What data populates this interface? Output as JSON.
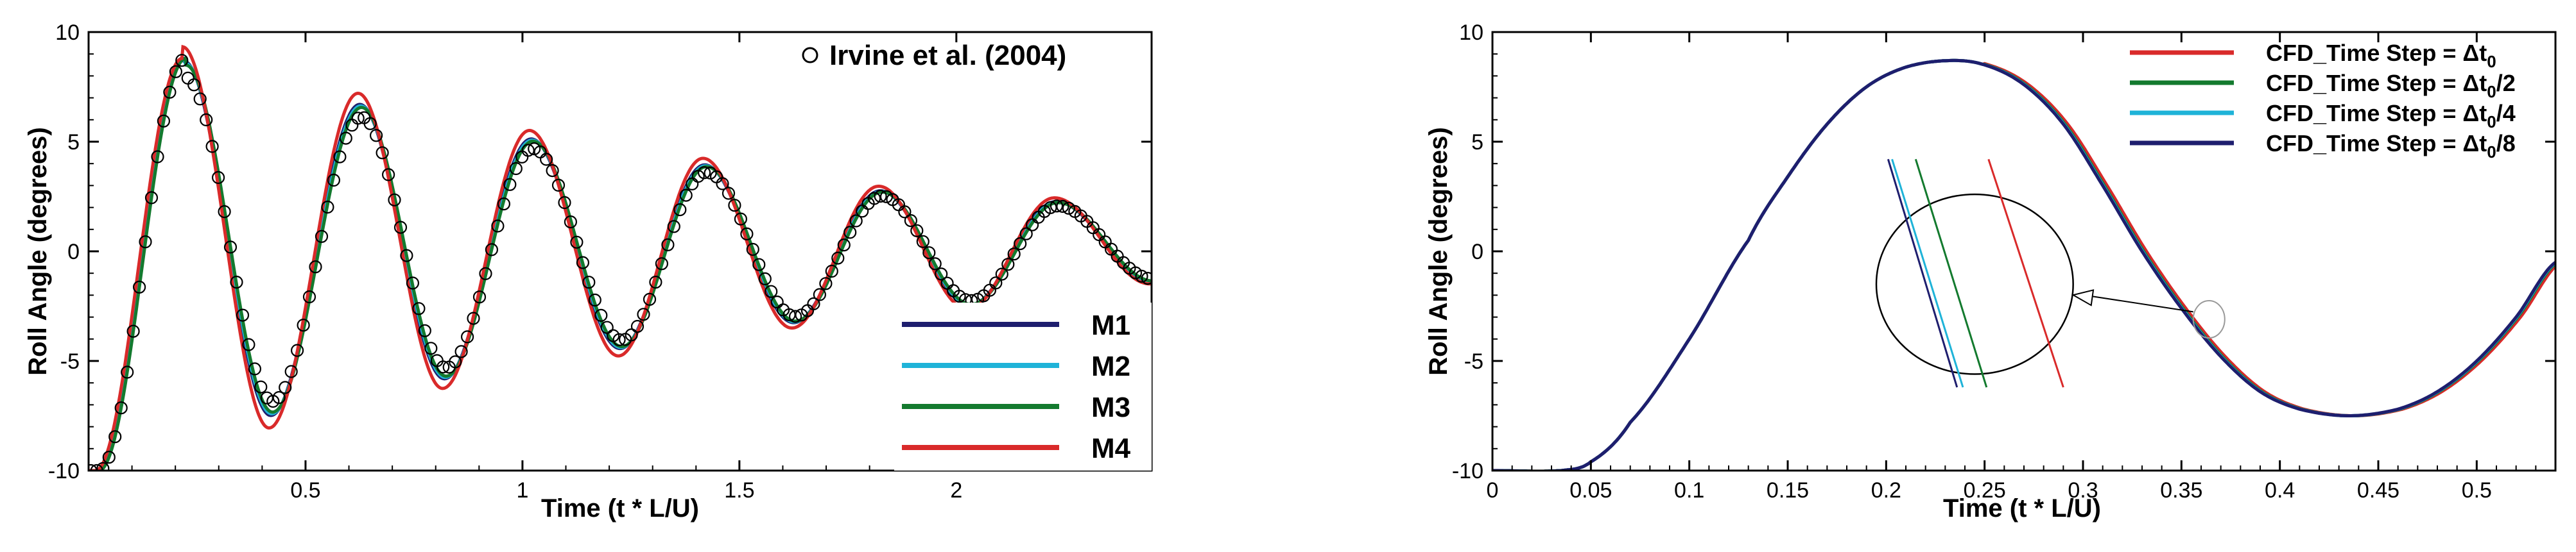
{
  "chart_data": [
    {
      "type": "line",
      "ylabel": "Roll Angle (degrees)",
      "xlabel": "Time (t * L/U)",
      "xlim": [
        0.0,
        2.45
      ],
      "ylim": [
        -10,
        10
      ],
      "xticks": [
        "0.5",
        "1",
        "1.5",
        "2"
      ],
      "xtick_values": [
        0.5,
        1.0,
        1.5,
        2.0
      ],
      "yticks": [
        "-10",
        "-5",
        "0",
        "5",
        "10"
      ],
      "ytick_values": [
        -10,
        -5,
        0,
        5,
        10
      ],
      "grid": false,
      "legend_position": "top-right (markers) and bottom-right (lines)",
      "model": {
        "description": "damped oscillation",
        "initial_angle": -10,
        "start_time": 0.02,
        "period": 0.4,
        "peaks": [
          {
            "t": 0.22,
            "y": 8.8
          },
          {
            "t": 0.42,
            "y": -7.6
          },
          {
            "t": 0.625,
            "y": 6.8
          },
          {
            "t": 0.82,
            "y": -5.9
          },
          {
            "t": 1.02,
            "y": 5.2
          },
          {
            "t": 1.225,
            "y": -4.5
          },
          {
            "t": 1.42,
            "y": 4.0
          },
          {
            "t": 1.625,
            "y": -3.3
          },
          {
            "t": 1.825,
            "y": 2.8
          },
          {
            "t": 2.03,
            "y": -2.5
          },
          {
            "t": 2.23,
            "y": 2.3
          },
          {
            "t": 2.45,
            "y": -1.4
          }
        ]
      },
      "series": [
        {
          "name": "M1",
          "color": "#1e1e6e",
          "amp_scale": 0.985,
          "phase_shift": 0.0
        },
        {
          "name": "M2",
          "color": "#1fb3d8",
          "amp_scale": 0.975,
          "phase_shift": 0.002
        },
        {
          "name": "M3",
          "color": "#137a2e",
          "amp_scale": 0.965,
          "phase_shift": 0.004
        },
        {
          "name": "M4",
          "color": "#d92a2a",
          "amp_scale": 1.06,
          "phase_shift": -0.004
        }
      ],
      "markers": {
        "name": "Irvine et al. (2004)",
        "amp_scale": 0.9,
        "phase_shift": 0.004,
        "style": "open-circle",
        "step": 0.014
      }
    },
    {
      "type": "line",
      "ylabel": "Roll Angle (degrees)",
      "xlabel": "Time (t * L/U)",
      "xlim": [
        0,
        0.54
      ],
      "ylim": [
        -10,
        10
      ],
      "xticks": [
        "0",
        "0.05",
        "0.1",
        "0.15",
        "0.2",
        "0.25",
        "0.3",
        "0.35",
        "0.4",
        "0.45",
        "0.5"
      ],
      "xtick_values": [
        0,
        0.05,
        0.1,
        0.15,
        0.2,
        0.25,
        0.3,
        0.35,
        0.4,
        0.45,
        0.5
      ],
      "yticks": [
        "-10",
        "-5",
        "0",
        "5",
        "10"
      ],
      "ytick_values": [
        -10,
        -5,
        0,
        5,
        10
      ],
      "grid": false,
      "legend_position": "top-right",
      "legend_prefix": "CFD_Time Step =",
      "legend_subs": [
        [
          "Δt",
          "0",
          ""
        ],
        [
          "Δt",
          "0",
          "/2"
        ],
        [
          "Δt",
          "0",
          "/4"
        ],
        [
          "Δt",
          "0",
          "/8"
        ]
      ],
      "model_points": [
        [
          0,
          -10
        ],
        [
          0.035,
          -10
        ],
        [
          0.05,
          -9.6
        ],
        [
          0.07,
          -7.8
        ],
        [
          0.1,
          -4.0
        ],
        [
          0.13,
          0.5
        ],
        [
          0.15,
          3.4
        ],
        [
          0.17,
          5.8
        ],
        [
          0.19,
          7.5
        ],
        [
          0.21,
          8.4
        ],
        [
          0.232,
          8.7
        ],
        [
          0.25,
          8.5
        ],
        [
          0.27,
          7.6
        ],
        [
          0.29,
          5.8
        ],
        [
          0.31,
          3.0
        ],
        [
          0.33,
          0.0
        ],
        [
          0.35,
          -2.6
        ],
        [
          0.37,
          -4.8
        ],
        [
          0.39,
          -6.4
        ],
        [
          0.41,
          -7.2
        ],
        [
          0.435,
          -7.5
        ],
        [
          0.46,
          -7.2
        ],
        [
          0.48,
          -6.4
        ],
        [
          0.5,
          -5.0
        ],
        [
          0.52,
          -3.0
        ],
        [
          0.54,
          -0.5
        ]
      ],
      "series": [
        {
          "color": "#d92a2a",
          "shift": 0.0022
        },
        {
          "color": "#137a2e",
          "shift": 0.0008
        },
        {
          "color": "#1fb3d8",
          "shift": 0.0003
        },
        {
          "color": "#1e1e6e",
          "shift": 0.0
        }
      ],
      "zoom": {
        "focus_t": 0.364,
        "focus_y": -3.1,
        "focus_r_x": 0.008,
        "focus_r_y": 0.85,
        "lens_center_t": 0.245,
        "lens_center_y": -1.5,
        "lens_r_x": 0.05,
        "lens_r_y": 4.1,
        "segments": [
          {
            "color": "#d92a2a",
            "t0": 0.252,
            "y0": 4.2,
            "t1": 0.29,
            "y1": -6.2
          },
          {
            "color": "#137a2e",
            "t0": 0.215,
            "y0": 4.2,
            "t1": 0.251,
            "y1": -6.2
          },
          {
            "color": "#1fb3d8",
            "t0": 0.203,
            "y0": 4.2,
            "t1": 0.239,
            "y1": -6.2
          },
          {
            "color": "#1e1e6e",
            "t0": 0.201,
            "y0": 4.2,
            "t1": 0.236,
            "y1": -6.2
          }
        ]
      }
    }
  ]
}
